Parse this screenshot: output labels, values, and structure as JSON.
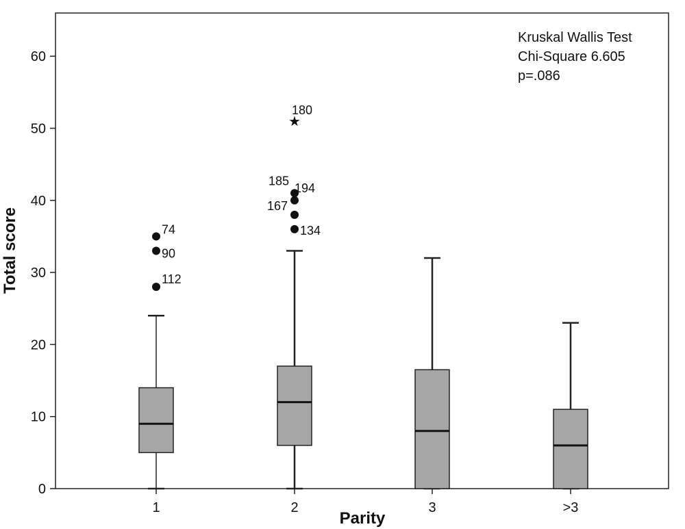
{
  "chart_data": {
    "type": "boxplot",
    "title": "",
    "xlabel": "Parity",
    "ylabel": "Total score",
    "ylim": [
      0,
      66
    ],
    "yticks": [
      "0",
      "10",
      "20",
      "30",
      "40",
      "50",
      "60"
    ],
    "grid": false,
    "annotation": [
      "Kruskal Wallis Test",
      "Chi-Square 6.605",
      "p=.086"
    ],
    "categories": [
      "1",
      "2",
      "3",
      ">3"
    ],
    "boxes": [
      {
        "category": "1",
        "whisker_low": 0,
        "q1": 5,
        "median": 9,
        "q3": 14,
        "whisker_high": 24,
        "outliers": [
          {
            "value": 35,
            "label": "74",
            "marker": "circle"
          },
          {
            "value": 33,
            "label": "90",
            "marker": "circle"
          },
          {
            "value": 28,
            "label": "112",
            "marker": "circle"
          }
        ]
      },
      {
        "category": "2",
        "whisker_low": 0,
        "q1": 6,
        "median": 12,
        "q3": 17,
        "whisker_high": 33,
        "outliers": [
          {
            "value": 51,
            "label": "180",
            "marker": "star"
          },
          {
            "value": 41,
            "label": "185",
            "marker": "circle"
          },
          {
            "value": 40,
            "label": "194",
            "marker": "circle"
          },
          {
            "value": 38,
            "label": "167",
            "marker": "circle"
          },
          {
            "value": 36,
            "label": "134",
            "marker": "circle"
          }
        ]
      },
      {
        "category": "3",
        "whisker_low": 0,
        "q1": 0,
        "median": 8,
        "q3": 16.5,
        "whisker_high": 32,
        "outliers": []
      },
      {
        "category": ">3",
        "whisker_low": 0,
        "q1": 0,
        "median": 6,
        "q3": 11,
        "whisker_high": 23,
        "outliers": []
      }
    ],
    "colors": {
      "box_fill": "#a6a6a6",
      "stroke": "#222222",
      "marker": "#111111"
    }
  }
}
